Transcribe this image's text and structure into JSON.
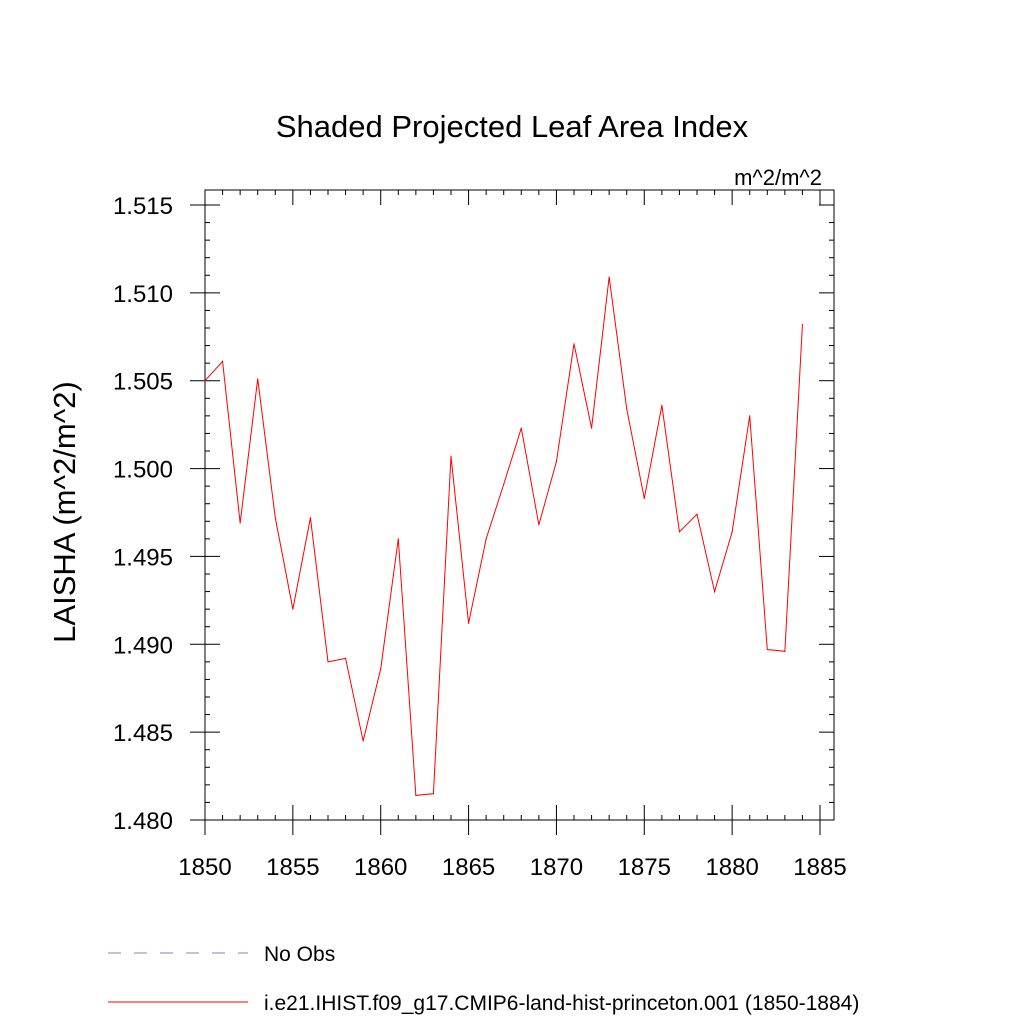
{
  "chart_data": {
    "type": "line",
    "title": "Shaded Projected Leaf Area Index",
    "units": "m^2/m^2",
    "xlabel": "",
    "ylabel": "LAISHA  (m^2/m^2)",
    "xlim": [
      1850,
      1885
    ],
    "ylim": [
      1.48,
      1.515
    ],
    "x_ticks": [
      1850,
      1855,
      1860,
      1865,
      1870,
      1875,
      1880,
      1885
    ],
    "x_tick_labels": [
      "1850",
      "1855",
      "1860",
      "1865",
      "1870",
      "1875",
      "1880",
      "1885"
    ],
    "y_ticks": [
      1.48,
      1.485,
      1.49,
      1.495,
      1.5,
      1.505,
      1.51,
      1.515
    ],
    "y_tick_labels": [
      "1.480",
      "1.485",
      "1.490",
      "1.495",
      "1.500",
      "1.505",
      "1.510",
      "1.515"
    ],
    "grid": false,
    "legend_position": "bottom",
    "series": [
      {
        "name": "i.e21.IHIST.f09_g17.CMIP6-land-hist-princeton.001 (1850-1884)",
        "color": "#ff0000",
        "dash": "solid",
        "x": [
          1850,
          1851,
          1852,
          1853,
          1854,
          1855,
          1856,
          1857,
          1858,
          1859,
          1860,
          1861,
          1862,
          1863,
          1864,
          1865,
          1866,
          1867,
          1868,
          1869,
          1870,
          1871,
          1872,
          1873,
          1874,
          1875,
          1876,
          1877,
          1878,
          1879,
          1880,
          1881,
          1882,
          1883,
          1884
        ],
        "values": [
          1.505,
          1.5061,
          1.4969,
          1.5051,
          1.4972,
          1.492,
          1.4972,
          1.489,
          1.4892,
          1.4845,
          1.4886,
          1.496,
          1.4814,
          1.4815,
          1.5007,
          1.4912,
          1.496,
          1.4991,
          1.5023,
          1.4968,
          1.5004,
          1.5071,
          1.5023,
          1.5109,
          1.5034,
          1.4983,
          1.5036,
          1.4964,
          1.4974,
          1.493,
          1.4964,
          1.503,
          1.4897,
          1.4896,
          1.5082
        ]
      }
    ],
    "legend": [
      {
        "label": "No Obs",
        "color": "#8080c0",
        "dash": "dashed"
      },
      {
        "label": "i.e21.IHIST.f09_g17.CMIP6-land-hist-princeton.001 (1850-1884)",
        "color": "#ff0000",
        "dash": "solid"
      }
    ]
  }
}
